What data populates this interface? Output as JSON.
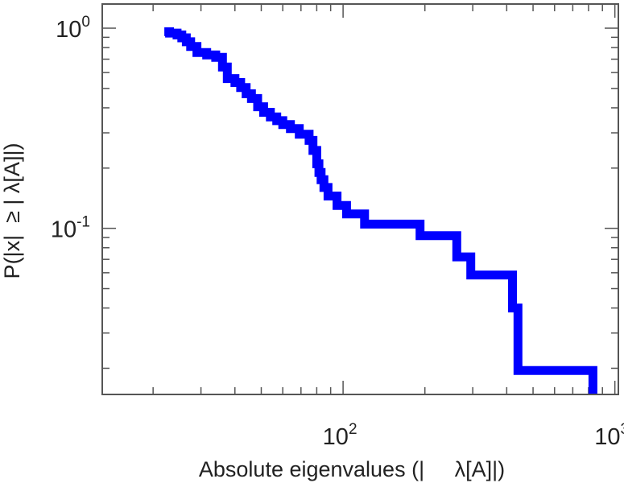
{
  "chart_data": {
    "type": "line",
    "title": "",
    "xlabel": "Absolute eigenvalues (|     λ[A]|)",
    "ylabel": "P(|x|  ≥ | λ[A]|)",
    "x_scale": "log",
    "y_scale": "log",
    "xlim": [
      13,
      1030
    ],
    "ylim": [
      0.0148,
      1.32
    ],
    "grid": false,
    "legend": "none",
    "line_color": "#0000ff",
    "x_ticks": [
      {
        "value": 100,
        "base": "10",
        "exp": "2"
      },
      {
        "value": 1000,
        "base": "10",
        "exp": "3"
      }
    ],
    "y_ticks": [
      {
        "value": 1,
        "base": "10",
        "exp": "0"
      },
      {
        "value": 0.1,
        "base": "10",
        "exp": "-1"
      }
    ],
    "series": [
      {
        "x": [
          22.0,
          23.0,
          23.0,
          24.5,
          24.5,
          25.5,
          25.5,
          26.5,
          26.5,
          27.5,
          27.5,
          29.0,
          29.0,
          31.5,
          31.5,
          34.0,
          34.0,
          36.0,
          36.0,
          37.5,
          37.5,
          40.0,
          40.0,
          42.0,
          42.0,
          44.0,
          44.0,
          46.0,
          46.0,
          48.5,
          48.5,
          51.0,
          51.0,
          54.0,
          54.0,
          57.0,
          57.0,
          60.0,
          60.0,
          64.0,
          64.0,
          69.0,
          69.0,
          75.0,
          75.0,
          77.5,
          77.5,
          80.0,
          80.0,
          81.5,
          81.5,
          83.0,
          83.0,
          85.0,
          85.0,
          88.0,
          88.0,
          95.0,
          95.0,
          103.0,
          103.0,
          120.0,
          120.0,
          192.0,
          192.0,
          262.0,
          262.0,
          295.0,
          295.0,
          420.0,
          420.0,
          440.0,
          440.0,
          830.0,
          830.0
        ],
        "y": [
          0.96,
          0.96,
          0.945,
          0.945,
          0.925,
          0.925,
          0.895,
          0.895,
          0.855,
          0.855,
          0.81,
          0.81,
          0.755,
          0.755,
          0.735,
          0.735,
          0.715,
          0.715,
          0.64,
          0.64,
          0.56,
          0.56,
          0.535,
          0.535,
          0.505,
          0.505,
          0.47,
          0.47,
          0.445,
          0.445,
          0.405,
          0.405,
          0.38,
          0.38,
          0.36,
          0.36,
          0.345,
          0.345,
          0.33,
          0.33,
          0.315,
          0.315,
          0.295,
          0.295,
          0.275,
          0.275,
          0.245,
          0.245,
          0.21,
          0.21,
          0.19,
          0.19,
          0.175,
          0.175,
          0.16,
          0.16,
          0.145,
          0.145,
          0.13,
          0.13,
          0.118,
          0.118,
          0.105,
          0.105,
          0.092,
          0.092,
          0.072,
          0.072,
          0.0585,
          0.0585,
          0.04,
          0.04,
          0.0195,
          0.0195,
          0.0148
        ]
      }
    ]
  }
}
